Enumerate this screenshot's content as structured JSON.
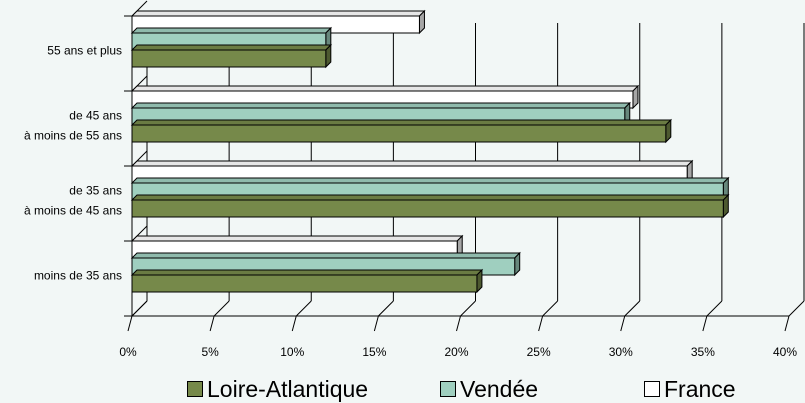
{
  "chart_data": {
    "type": "bar",
    "orientation": "horizontal",
    "style": "3d",
    "categories": [
      "moins de 35 ans",
      "de 35 ans à moins de 45 ans",
      "de 45 ans à moins de 55 ans",
      "55 ans et plus"
    ],
    "category_labels": [
      [
        "moins de 35 ans"
      ],
      [
        "de 35 ans",
        "à moins de 45 ans"
      ],
      [
        "de 45 ans",
        "à moins de 55 ans"
      ],
      [
        "55 ans et plus"
      ]
    ],
    "series": [
      {
        "name": "Loire-Atlantique",
        "color": "#76894a",
        "values": [
          21.0,
          36.0,
          32.5,
          11.8
        ]
      },
      {
        "name": "Vendée",
        "color": "#9fcfbf",
        "values": [
          23.3,
          36.0,
          30.0,
          11.8
        ]
      },
      {
        "name": "France",
        "color": "#ffffff",
        "values": [
          19.8,
          33.8,
          30.5,
          17.5
        ]
      }
    ],
    "xlim": [
      0,
      40
    ],
    "ticks": [
      "0%",
      "5%",
      "10%",
      "15%",
      "20%",
      "25%",
      "30%",
      "35%",
      "40%"
    ],
    "tick_values": [
      0,
      5,
      10,
      15,
      20,
      25,
      30,
      35,
      40
    ],
    "grid": true,
    "legend_position": "bottom"
  }
}
